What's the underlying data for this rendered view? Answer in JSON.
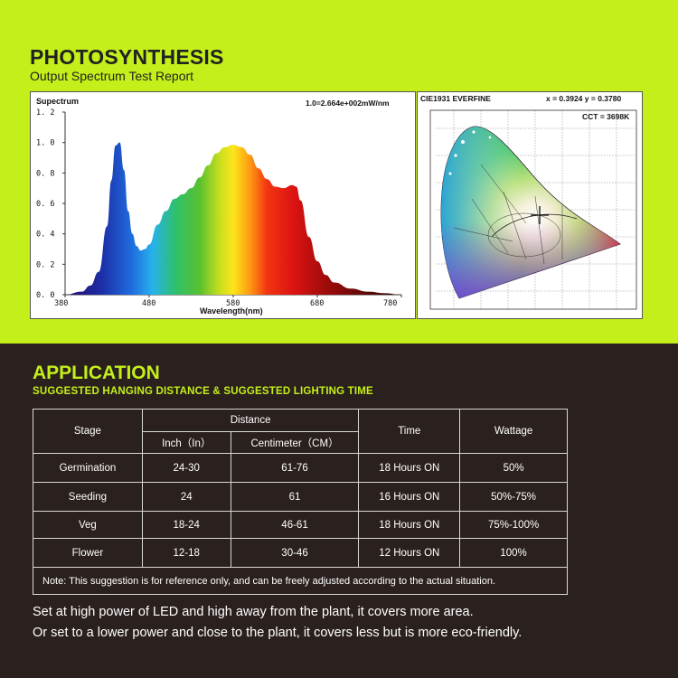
{
  "header": {
    "title": "PHOTOSYNTHESIS",
    "subtitle": "Output Spectrum Test Report"
  },
  "spectrum": {
    "label": "Supectrum",
    "scale_note": "1.0=2.664e+002mW/nm"
  },
  "cie": {
    "title": "CIE1931 EVERFINE",
    "coords": "x = 0.3924 y = 0.3780",
    "cct": "CCT = 3698K"
  },
  "chart_data": {
    "type": "area",
    "xlabel": "Wavelength(nm)",
    "ylabel": "",
    "xlim": [
      380,
      780
    ],
    "ylim": [
      0,
      1.2
    ],
    "xticks": [
      "380",
      "480",
      "580",
      "680",
      "780"
    ],
    "yticks": [
      "0. 0",
      "0. 2",
      "0. 4",
      "0. 6",
      "0. 8",
      "1. 0",
      "1. 2"
    ],
    "grid": false,
    "x": [
      380,
      400,
      410,
      420,
      430,
      435,
      440,
      445,
      450,
      455,
      460,
      465,
      470,
      475,
      480,
      490,
      500,
      510,
      520,
      530,
      540,
      550,
      560,
      570,
      580,
      590,
      600,
      610,
      620,
      630,
      640,
      650,
      655,
      660,
      670,
      680,
      690,
      700,
      720,
      740,
      760,
      780
    ],
    "y": [
      0,
      0.02,
      0.06,
      0.15,
      0.45,
      0.75,
      0.98,
      1.0,
      0.82,
      0.55,
      0.4,
      0.32,
      0.29,
      0.3,
      0.33,
      0.46,
      0.55,
      0.63,
      0.66,
      0.7,
      0.77,
      0.85,
      0.93,
      0.97,
      0.985,
      0.97,
      0.92,
      0.83,
      0.76,
      0.71,
      0.7,
      0.72,
      0.71,
      0.62,
      0.38,
      0.22,
      0.13,
      0.08,
      0.04,
      0.02,
      0.01,
      0
    ]
  },
  "application": {
    "title": "APPLICATION",
    "subtitle": "SUGGESTED HANGING DISTANCE & SUGGESTED LIGHTING TIME",
    "table": {
      "headers": {
        "stage": "Stage",
        "distance": "Distance",
        "inch": "Inch（In）",
        "cm": "Centimeter（CM）",
        "time": "Time",
        "wattage": "Wattage"
      },
      "rows": [
        {
          "stage": "Germination",
          "inch": "24-30",
          "cm": "61-76",
          "time": "18 Hours ON",
          "wattage": "50%"
        },
        {
          "stage": "Seeding",
          "inch": "24",
          "cm": "61",
          "time": "16 Hours ON",
          "wattage": "50%-75%"
        },
        {
          "stage": "Veg",
          "inch": "18-24",
          "cm": "46-61",
          "time": "18 Hours ON",
          "wattage": "75%-100%"
        },
        {
          "stage": "Flower",
          "inch": "12-18",
          "cm": "30-46",
          "time": "12 Hours ON",
          "wattage": "100%"
        }
      ],
      "note": "Note: This suggestion is for reference only, and can be freely adjusted according to the actual situation."
    },
    "caption_line1": "Set at high power of LED and high away from the plant, it covers more area.",
    "caption_line2": "Or set to a lower power and close to the plant, it covers less but is more eco-friendly."
  }
}
